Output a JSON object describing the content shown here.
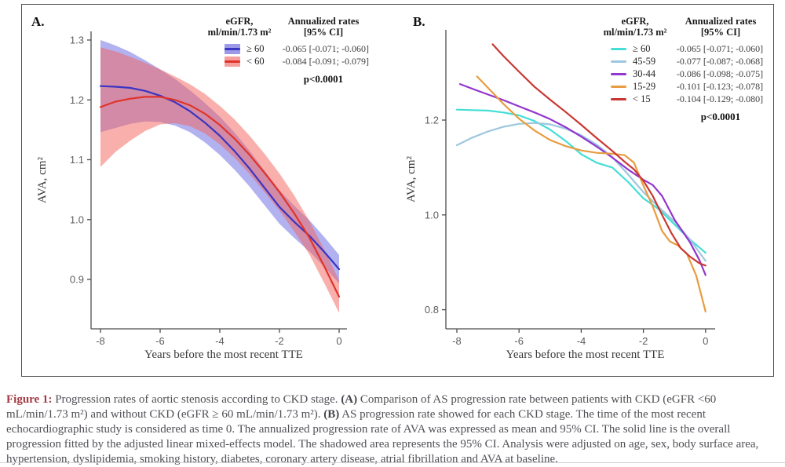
{
  "caption": {
    "segments": [
      {
        "text": "Figure 1:",
        "style": "figlabel"
      },
      {
        "text": " Progression rates of aortic stenosis according to CKD stage. ",
        "style": "normal"
      },
      {
        "text": "(A)",
        "style": "bold"
      },
      {
        "text": " Comparison of AS progression rate between patients with CKD (eGFR <60 mL/min/1.73 m²) and without CKD (eGFR ≥ 60 mL/min/1.73 m²). ",
        "style": "normal"
      },
      {
        "text": "(B)",
        "style": "bold"
      },
      {
        "text": " AS progression rate showed for each CKD stage. The time of the most recent echocardiographic study is considered as time 0. The annualized progression rate of AVA was expressed as mean and 95% CI. The solid line is the overall progression fitted by the adjusted linear mixed-effects model. The shadowed area represents the 95% CI. Analysis were adjusted on age, sex, body surface area, hypertension, dyslipidemia, smoking history, diabetes, coronary artery disease, atrial fibrillation and AVA at baseline.",
        "style": "normal"
      }
    ]
  },
  "chart_data": [
    {
      "id": "A",
      "type": "line",
      "panel_label": "A.",
      "xlabel": "Years before the most recent TTE",
      "ylabel": "AVA, cm²",
      "xlim": [
        -8,
        0
      ],
      "ylim": [
        0.82,
        1.32
      ],
      "xticks": [
        -8,
        -6,
        -4,
        -2,
        0
      ],
      "yticks": [
        1.3,
        1.2,
        1.1,
        1.0,
        0.9
      ],
      "grid": false,
      "legend": {
        "position": "top-right-inside",
        "col1_header": [
          "eGFR,",
          "ml/min/1.73 m²"
        ],
        "col2_header": [
          "Annualized rates",
          "[95% CI]"
        ],
        "pvalue": "p<0.0001",
        "rows": [
          {
            "label": "≥ 60",
            "rate": "-0.065 [-0.071; -0.060]",
            "color": "#3a35c2",
            "band_color": "#9c9ae8"
          },
          {
            "label": "< 60",
            "rate": "-0.084 [-0.091; -0.079]",
            "color": "#e0342b",
            "band_color": "#f5a09c"
          }
        ]
      },
      "series": [
        {
          "name": "≥ 60",
          "color": "#3a35c2",
          "band_fill": "rgba(85,85,225,0.45)",
          "points": [
            [
              -8,
              1.223
            ],
            [
              -7.5,
              1.222
            ],
            [
              -7,
              1.22
            ],
            [
              -6.5,
              1.215
            ],
            [
              -6,
              1.207
            ],
            [
              -5.5,
              1.196
            ],
            [
              -5,
              1.181
            ],
            [
              -4.5,
              1.162
            ],
            [
              -4,
              1.14
            ],
            [
              -3.5,
              1.114
            ],
            [
              -3,
              1.085
            ],
            [
              -2.5,
              1.053
            ],
            [
              -2,
              1.021
            ],
            [
              -1.5,
              0.996
            ],
            [
              -1,
              0.973
            ],
            [
              -0.5,
              0.946
            ],
            [
              0,
              0.917
            ]
          ],
          "upper": [
            [
              -8,
              1.3
            ],
            [
              -7.5,
              1.291
            ],
            [
              -7,
              1.28
            ],
            [
              -6.5,
              1.266
            ],
            [
              -6,
              1.251
            ],
            [
              -5.5,
              1.235
            ],
            [
              -5,
              1.216
            ],
            [
              -4.5,
              1.195
            ],
            [
              -4,
              1.172
            ],
            [
              -3.5,
              1.145
            ],
            [
              -3,
              1.115
            ],
            [
              -2.5,
              1.082
            ],
            [
              -2,
              1.049
            ],
            [
              -1.5,
              1.023
            ],
            [
              -1,
              0.999
            ],
            [
              -0.5,
              0.971
            ],
            [
              0,
              0.941
            ]
          ],
          "lower": [
            [
              -8,
              1.146
            ],
            [
              -7.5,
              1.153
            ],
            [
              -7,
              1.16
            ],
            [
              -6.5,
              1.164
            ],
            [
              -6,
              1.163
            ],
            [
              -5.5,
              1.157
            ],
            [
              -5,
              1.146
            ],
            [
              -4.5,
              1.129
            ],
            [
              -4,
              1.108
            ],
            [
              -3.5,
              1.083
            ],
            [
              -3,
              1.055
            ],
            [
              -2.5,
              1.024
            ],
            [
              -2,
              0.993
            ],
            [
              -1.5,
              0.969
            ],
            [
              -1,
              0.947
            ],
            [
              -0.5,
              0.921
            ],
            [
              0,
              0.893
            ]
          ]
        },
        {
          "name": "< 60",
          "color": "#e0342b",
          "band_fill": "rgba(243,98,92,0.5)",
          "points": [
            [
              -8,
              1.188
            ],
            [
              -7.5,
              1.197
            ],
            [
              -7,
              1.202
            ],
            [
              -6.5,
              1.205
            ],
            [
              -6,
              1.205
            ],
            [
              -5.5,
              1.2
            ],
            [
              -5,
              1.191
            ],
            [
              -4.5,
              1.177
            ],
            [
              -4,
              1.158
            ],
            [
              -3.5,
              1.135
            ],
            [
              -3,
              1.108
            ],
            [
              -2.5,
              1.078
            ],
            [
              -2,
              1.046
            ],
            [
              -1.5,
              1.01
            ],
            [
              -1,
              0.97
            ],
            [
              -0.5,
              0.922
            ],
            [
              0,
              0.871
            ]
          ],
          "upper": [
            [
              -8,
              1.288
            ],
            [
              -7.5,
              1.281
            ],
            [
              -7,
              1.272
            ],
            [
              -6.5,
              1.262
            ],
            [
              -6,
              1.251
            ],
            [
              -5.5,
              1.239
            ],
            [
              -5,
              1.226
            ],
            [
              -4.5,
              1.21
            ],
            [
              -4,
              1.19
            ],
            [
              -3.5,
              1.167
            ],
            [
              -3,
              1.14
            ],
            [
              -2.5,
              1.11
            ],
            [
              -2,
              1.077
            ],
            [
              -1.5,
              1.04
            ],
            [
              -1,
              0.998
            ],
            [
              -0.5,
              0.95
            ],
            [
              0,
              0.898
            ]
          ],
          "lower": [
            [
              -8,
              1.088
            ],
            [
              -7.5,
              1.113
            ],
            [
              -7,
              1.132
            ],
            [
              -6.5,
              1.148
            ],
            [
              -6,
              1.159
            ],
            [
              -5.5,
              1.161
            ],
            [
              -5,
              1.156
            ],
            [
              -4.5,
              1.144
            ],
            [
              -4,
              1.126
            ],
            [
              -3.5,
              1.103
            ],
            [
              -3,
              1.076
            ],
            [
              -2.5,
              1.046
            ],
            [
              -2,
              1.015
            ],
            [
              -1.5,
              0.98
            ],
            [
              -1,
              0.942
            ],
            [
              -0.5,
              0.894
            ],
            [
              0,
              0.844
            ]
          ]
        }
      ]
    },
    {
      "id": "B",
      "type": "line",
      "panel_label": "B.",
      "xlabel": "Years before the most recent TTE",
      "ylabel": "AVA, cm²",
      "xlim": [
        -8,
        0
      ],
      "ylim": [
        0.76,
        1.38
      ],
      "xticks": [
        -8,
        -6,
        -4,
        -2,
        0
      ],
      "yticks": [
        1.2,
        1.0,
        0.8
      ],
      "grid": false,
      "legend": {
        "position": "top-right-inside",
        "col1_header": [
          "eGFR,",
          "ml/min/1.73 m²"
        ],
        "col2_header": [
          "Annualized rates",
          "[95% CI]"
        ],
        "pvalue": "p<0.0001",
        "rows": [
          {
            "label": "≥ 60",
            "rate": "-0.065 [-0.071; -0.060]",
            "color": "#45ded6"
          },
          {
            "label": "45-59",
            "rate": "-0.077 [-0.087; -0.068]",
            "color": "#9dc7de"
          },
          {
            "label": "30-44",
            "rate": "-0.086 [-0.098; -0.075]",
            "color": "#9335ce"
          },
          {
            "label": "15-29",
            "rate": "-0.101 [-0.123; -0.078]",
            "color": "#e79c3f"
          },
          {
            "label": "< 15",
            "rate": "-0.104 [-0.129; -0.080]",
            "color": "#c93732"
          }
        ]
      },
      "series": [
        {
          "name": "≥ 60",
          "color": "#45ded6",
          "points": [
            [
              -8,
              1.222
            ],
            [
              -7.5,
              1.221
            ],
            [
              -7,
              1.22
            ],
            [
              -6.5,
              1.216
            ],
            [
              -6,
              1.21
            ],
            [
              -5.5,
              1.198
            ],
            [
              -5,
              1.18
            ],
            [
              -4.5,
              1.156
            ],
            [
              -4,
              1.128
            ],
            [
              -3.5,
              1.11
            ],
            [
              -3,
              1.1
            ],
            [
              -2.5,
              1.07
            ],
            [
              -2,
              1.035
            ],
            [
              -1.5,
              1.012
            ],
            [
              -1,
              0.98
            ],
            [
              -0.5,
              0.948
            ],
            [
              0,
              0.92
            ]
          ]
        },
        {
          "name": "45-59",
          "color": "#9dc7de",
          "points": [
            [
              -8,
              1.147
            ],
            [
              -7.5,
              1.163
            ],
            [
              -7,
              1.176
            ],
            [
              -6.5,
              1.186
            ],
            [
              -6,
              1.192
            ],
            [
              -5.5,
              1.194
            ],
            [
              -5,
              1.191
            ],
            [
              -4.5,
              1.182
            ],
            [
              -4,
              1.168
            ],
            [
              -3.5,
              1.148
            ],
            [
              -3,
              1.122
            ],
            [
              -2.5,
              1.086
            ],
            [
              -2,
              1.048
            ],
            [
              -1.5,
              1.016
            ],
            [
              -1,
              0.986
            ],
            [
              -0.5,
              0.948
            ],
            [
              0,
              0.903
            ]
          ]
        },
        {
          "name": "30-44",
          "color": "#9335ce",
          "points": [
            [
              -7.9,
              1.276
            ],
            [
              -7.5,
              1.266
            ],
            [
              -7,
              1.254
            ],
            [
              -6.5,
              1.242
            ],
            [
              -6,
              1.229
            ],
            [
              -5.5,
              1.216
            ],
            [
              -5,
              1.202
            ],
            [
              -4.5,
              1.185
            ],
            [
              -4,
              1.165
            ],
            [
              -3.5,
              1.144
            ],
            [
              -3,
              1.121
            ],
            [
              -2.5,
              1.096
            ],
            [
              -2,
              1.074
            ],
            [
              -1.7,
              1.063
            ],
            [
              -1.4,
              1.04
            ],
            [
              -1,
              0.99
            ],
            [
              -0.5,
              0.942
            ],
            [
              -0.2,
              0.905
            ],
            [
              0,
              0.873
            ]
          ]
        },
        {
          "name": "15-29",
          "color": "#e79c3f",
          "points": [
            [
              -7.35,
              1.292
            ],
            [
              -7,
              1.268
            ],
            [
              -6.5,
              1.234
            ],
            [
              -6,
              1.203
            ],
            [
              -5.5,
              1.178
            ],
            [
              -5,
              1.158
            ],
            [
              -4.5,
              1.145
            ],
            [
              -4,
              1.136
            ],
            [
              -3.5,
              1.131
            ],
            [
              -3,
              1.129
            ],
            [
              -2.6,
              1.126
            ],
            [
              -2.3,
              1.11
            ],
            [
              -2,
              1.062
            ],
            [
              -1.7,
              1.018
            ],
            [
              -1.4,
              0.966
            ],
            [
              -1.15,
              0.944
            ],
            [
              -0.9,
              0.936
            ],
            [
              -0.6,
              0.918
            ],
            [
              -0.3,
              0.872
            ],
            [
              0,
              0.796
            ]
          ]
        },
        {
          "name": "< 15",
          "color": "#c93732",
          "points": [
            [
              -6.85,
              1.36
            ],
            [
              -6.5,
              1.335
            ],
            [
              -6,
              1.302
            ],
            [
              -5.5,
              1.27
            ],
            [
              -5,
              1.243
            ],
            [
              -4.5,
              1.217
            ],
            [
              -4,
              1.19
            ],
            [
              -3.5,
              1.162
            ],
            [
              -3,
              1.135
            ],
            [
              -2.6,
              1.112
            ],
            [
              -2.3,
              1.096
            ],
            [
              -2,
              1.072
            ],
            [
              -1.7,
              1.04
            ],
            [
              -1.4,
              1.0
            ],
            [
              -1.1,
              0.962
            ],
            [
              -0.8,
              0.93
            ],
            [
              -0.5,
              0.912
            ],
            [
              -0.2,
              0.898
            ],
            [
              0,
              0.893
            ]
          ]
        }
      ]
    }
  ]
}
